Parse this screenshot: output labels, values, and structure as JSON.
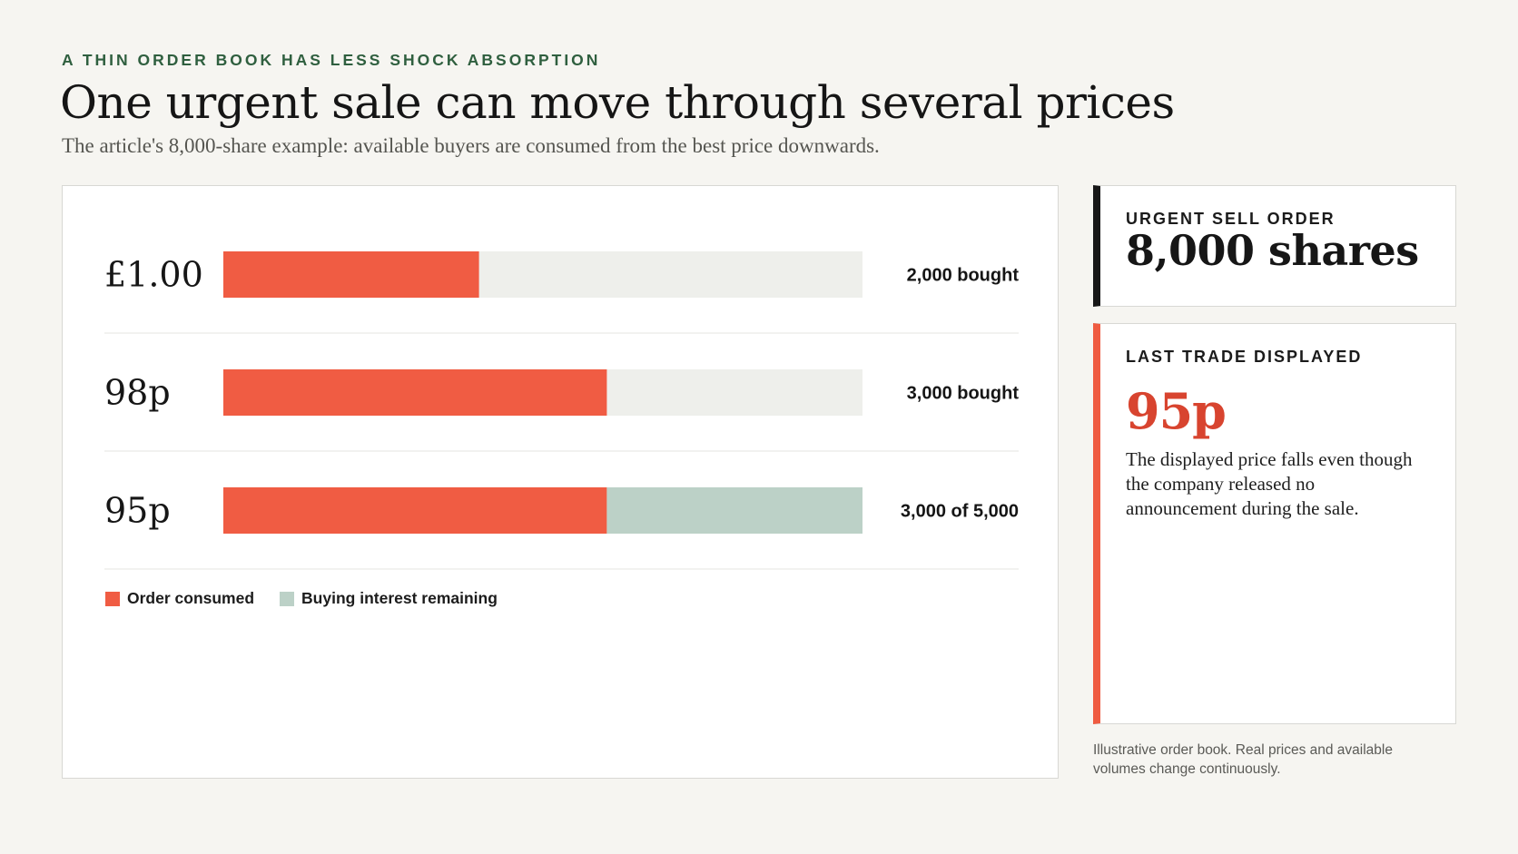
{
  "header": {
    "kicker": "A THIN ORDER BOOK HAS LESS SHOCK ABSORPTION",
    "title": "One urgent sale can move through several prices",
    "subtitle": "The article's 8,000-share example: available buyers are consumed from the best price downwards."
  },
  "chart_data": {
    "type": "bar",
    "orientation": "horizontal",
    "stacked": true,
    "categories": [
      "£1.00",
      "98p",
      "95p"
    ],
    "series": [
      {
        "name": "Order consumed",
        "values": [
          2000,
          3000,
          3000
        ],
        "color": "#f05c43"
      },
      {
        "name": "Buying interest remaining",
        "values": [
          0,
          0,
          2000
        ],
        "color": "#bcd1c7"
      }
    ],
    "data_labels": [
      "2,000 bought",
      "3,000 bought",
      "3,000 of 5,000"
    ],
    "xlim": [
      0,
      5000
    ],
    "track_color": "#eeefeb",
    "legend_position": "bottom-left",
    "grid": false
  },
  "legend": [
    {
      "label": "Order consumed",
      "color": "#f05c43"
    },
    {
      "label": "Buying interest remaining",
      "color": "#bcd1c7"
    }
  ],
  "order_card": {
    "label": "URGENT SELL ORDER",
    "value": "8,000 shares",
    "accent": "#171717"
  },
  "trade_card": {
    "label": "LAST TRADE DISPLAYED",
    "value": "95p",
    "description": "The displayed price falls even though the company released no announcement during the sale.",
    "accent": "#ef5b41"
  },
  "footnote": "Illustrative order book. Real prices and available volumes change continuously."
}
